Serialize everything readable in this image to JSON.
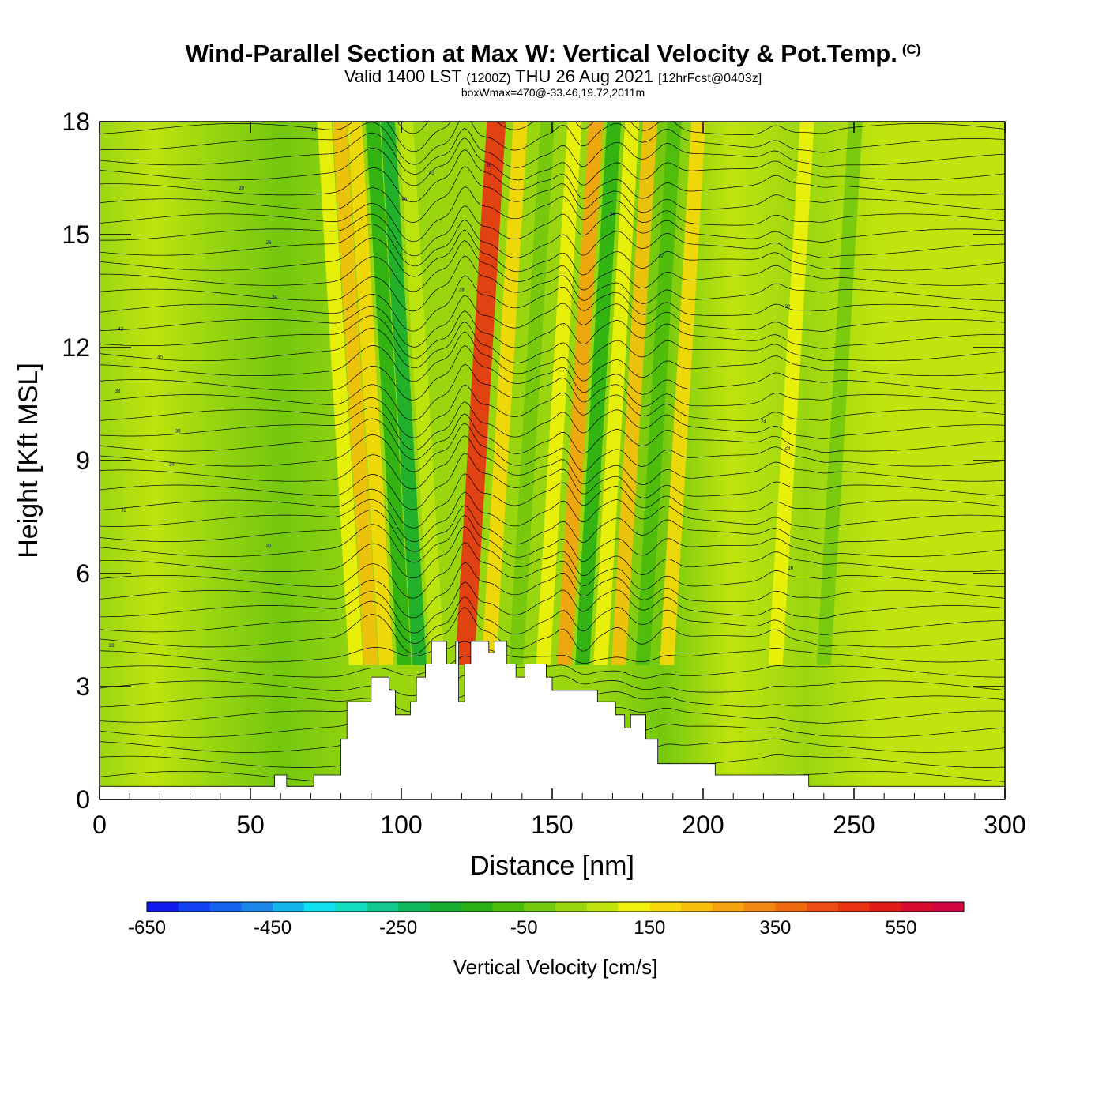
{
  "header": {
    "title": "Wind-Parallel Section at Max W: Vertical Velocity & Pot.Temp.",
    "copyright": "(C)",
    "valid_prefix": "Valid 1400 LST",
    "valid_utc": "(1200Z)",
    "valid_date": "THU 26 Aug 2021",
    "forecast": "[12hrFcst@0403z]",
    "box_wmax": "boxWmax=470@-33.46,19.72,2011m"
  },
  "chart_data": {
    "type": "heatmap",
    "title": "Wind-Parallel Section at Max W: Vertical Velocity & Pot.Temp.",
    "xlabel": "Distance [nm]",
    "ylabel": "Height [Kft MSL]",
    "xlim": [
      0,
      300
    ],
    "ylim": [
      0,
      18
    ],
    "xticks": [
      "0",
      "50",
      "100",
      "150",
      "200",
      "250",
      "300"
    ],
    "yticks": [
      "0",
      "3",
      "6",
      "9",
      "12",
      "15",
      "18"
    ],
    "colorbar": {
      "title": "Vertical Velocity [cm/s]",
      "min": -650,
      "max": 650,
      "step": 50,
      "tick_labels": [
        "-650",
        "-450",
        "-250",
        "-50",
        "150",
        "350",
        "550"
      ],
      "colors": [
        "#0f1aef",
        "#1240f2",
        "#1763ee",
        "#1a86ea",
        "#12b4ec",
        "#0fe0ef",
        "#10dcc0",
        "#12c88f",
        "#10b85c",
        "#16ad30",
        "#29b014",
        "#4bbb0c",
        "#74c80e",
        "#9ad610",
        "#bfe40e",
        "#f0f20a",
        "#f7d80a",
        "#f6c00d",
        "#f5a30e",
        "#f2880f",
        "#f06a10",
        "#ec4d12",
        "#e83212",
        "#e31b17",
        "#d90c2e",
        "#d40642"
      ]
    },
    "terrain_profile_kft": [
      {
        "x": 0,
        "h": 0.35
      },
      {
        "x": 58,
        "h": 0.35
      },
      {
        "x": 58,
        "h": 0.65
      },
      {
        "x": 62,
        "h": 0.65
      },
      {
        "x": 62,
        "h": 0.35
      },
      {
        "x": 71,
        "h": 0.35
      },
      {
        "x": 71,
        "h": 0.65
      },
      {
        "x": 80,
        "h": 0.65
      },
      {
        "x": 80,
        "h": 1.6
      },
      {
        "x": 82,
        "h": 1.6
      },
      {
        "x": 82,
        "h": 2.6
      },
      {
        "x": 90,
        "h": 2.6
      },
      {
        "x": 90,
        "h": 3.25
      },
      {
        "x": 96,
        "h": 3.25
      },
      {
        "x": 96,
        "h": 2.9
      },
      {
        "x": 98,
        "h": 2.9
      },
      {
        "x": 98,
        "h": 2.25
      },
      {
        "x": 103,
        "h": 2.25
      },
      {
        "x": 103,
        "h": 2.6
      },
      {
        "x": 105,
        "h": 2.6
      },
      {
        "x": 105,
        "h": 3.25
      },
      {
        "x": 108,
        "h": 3.25
      },
      {
        "x": 108,
        "h": 3.6
      },
      {
        "x": 110,
        "h": 3.6
      },
      {
        "x": 110,
        "h": 4.2
      },
      {
        "x": 115,
        "h": 4.2
      },
      {
        "x": 115,
        "h": 3.6
      },
      {
        "x": 118,
        "h": 3.6
      },
      {
        "x": 118,
        "h": 4.2
      },
      {
        "x": 119,
        "h": 4.2
      },
      {
        "x": 119,
        "h": 2.6
      },
      {
        "x": 121,
        "h": 2.6
      },
      {
        "x": 121,
        "h": 3.6
      },
      {
        "x": 123,
        "h": 3.6
      },
      {
        "x": 123,
        "h": 4.2
      },
      {
        "x": 129,
        "h": 4.2
      },
      {
        "x": 129,
        "h": 3.9
      },
      {
        "x": 131,
        "h": 3.9
      },
      {
        "x": 131,
        "h": 4.2
      },
      {
        "x": 135,
        "h": 4.2
      },
      {
        "x": 135,
        "h": 3.6
      },
      {
        "x": 138,
        "h": 3.6
      },
      {
        "x": 138,
        "h": 3.25
      },
      {
        "x": 141,
        "h": 3.25
      },
      {
        "x": 141,
        "h": 3.6
      },
      {
        "x": 148,
        "h": 3.6
      },
      {
        "x": 148,
        "h": 3.25
      },
      {
        "x": 150,
        "h": 3.25
      },
      {
        "x": 150,
        "h": 2.9
      },
      {
        "x": 165,
        "h": 2.9
      },
      {
        "x": 165,
        "h": 2.6
      },
      {
        "x": 171,
        "h": 2.6
      },
      {
        "x": 171,
        "h": 2.25
      },
      {
        "x": 174,
        "h": 2.25
      },
      {
        "x": 174,
        "h": 1.9
      },
      {
        "x": 176,
        "h": 1.9
      },
      {
        "x": 176,
        "h": 2.25
      },
      {
        "x": 181,
        "h": 2.25
      },
      {
        "x": 181,
        "h": 1.6
      },
      {
        "x": 185,
        "h": 1.6
      },
      {
        "x": 185,
        "h": 0.95
      },
      {
        "x": 204,
        "h": 0.95
      },
      {
        "x": 204,
        "h": 0.65
      },
      {
        "x": 235,
        "h": 0.65
      },
      {
        "x": 235,
        "h": 0.35
      },
      {
        "x": 300,
        "h": 0.35
      }
    ],
    "velocity_bands": [
      {
        "x": 85,
        "w_cm_s": 120
      },
      {
        "x": 90,
        "w_cm_s": 230
      },
      {
        "x": 95,
        "w_cm_s": 150
      },
      {
        "x": 101,
        "w_cm_s": -150
      },
      {
        "x": 106,
        "w_cm_s": -180
      },
      {
        "x": 112,
        "w_cm_s": 60
      },
      {
        "x": 121,
        "w_cm_s": 470
      },
      {
        "x": 129,
        "w_cm_s": 150
      },
      {
        "x": 138,
        "w_cm_s": -40
      },
      {
        "x": 147,
        "w_cm_s": 100
      },
      {
        "x": 154,
        "w_cm_s": 250
      },
      {
        "x": 160,
        "w_cm_s": -120
      },
      {
        "x": 166,
        "w_cm_s": 110
      },
      {
        "x": 172,
        "w_cm_s": 200
      },
      {
        "x": 180,
        "w_cm_s": -60
      },
      {
        "x": 188,
        "w_cm_s": 150
      },
      {
        "x": 224,
        "w_cm_s": 120
      },
      {
        "x": 240,
        "w_cm_s": -40
      }
    ],
    "contour_labels": [
      "42",
      "40",
      "38",
      "36",
      "34",
      "32",
      "30",
      "28",
      "26",
      "24",
      "20",
      "18"
    ]
  }
}
